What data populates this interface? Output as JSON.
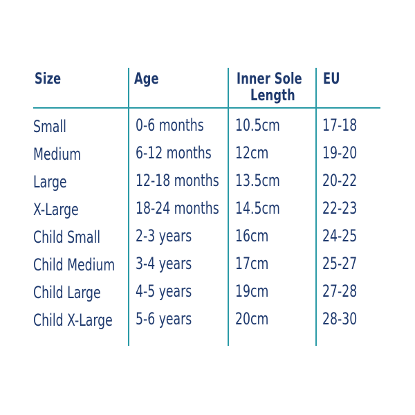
{
  "table": {
    "headers": {
      "size": "Size",
      "age": "Age",
      "inner_sole_line1": "Inner Sole",
      "inner_sole_line2": "Length",
      "eu": "EU"
    },
    "rows": [
      {
        "size": "Small",
        "age": "0-6 months",
        "length": "10.5cm",
        "eu": "17-18"
      },
      {
        "size": "Medium",
        "age": "6-12 months",
        "length": "12cm",
        "eu": "19-20"
      },
      {
        "size": "Large",
        "age": "12-18 months",
        "length": "13.5cm",
        "eu": "20-22"
      },
      {
        "size": "X-Large",
        "age": "18-24 months",
        "length": "14.5cm",
        "eu": "22-23"
      },
      {
        "size": "Child Small",
        "age": "2-3 years",
        "length": "16cm",
        "eu": "24-25"
      },
      {
        "size": "Child Medium",
        "age": "3-4 years",
        "length": "17cm",
        "eu": "25-27"
      },
      {
        "size": "Child Large",
        "age": "4-5 years",
        "length": "19cm",
        "eu": "27-28"
      },
      {
        "size": "Child X-Large",
        "age": "5-6 years",
        "length": "20cm",
        "eu": "28-30"
      }
    ],
    "colors": {
      "text": "#1f3a6e",
      "rule": "#2a9aa6"
    }
  }
}
